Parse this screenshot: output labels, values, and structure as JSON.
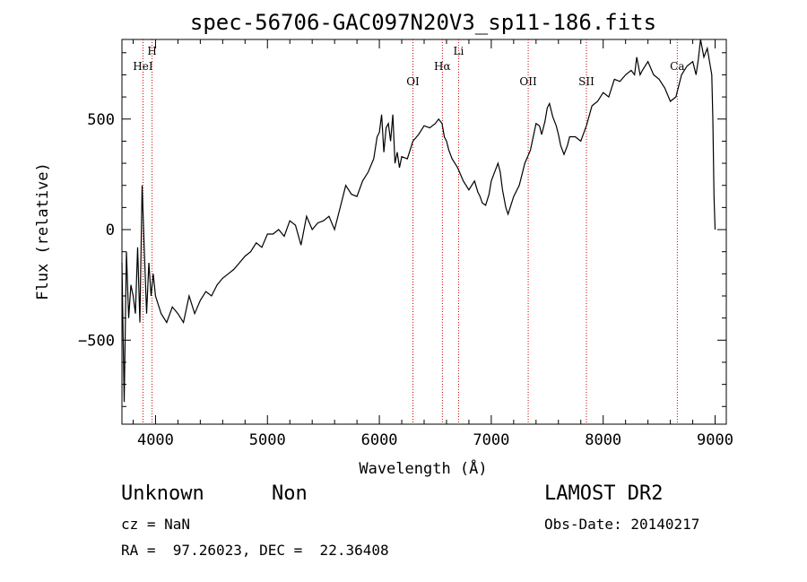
{
  "chart_data": {
    "type": "line",
    "title": "spec-56706-GAC097N20V3_sp11-186.fits",
    "xlabel": "Wavelength (Å)",
    "ylabel": "Flux (relative)",
    "xlim": [
      3700,
      9100
    ],
    "ylim": [
      -880,
      860
    ],
    "x_ticks": [
      4000,
      5000,
      6000,
      7000,
      8000,
      9000
    ],
    "y_ticks": [
      -500,
      0,
      500
    ],
    "grid": false,
    "line_color": "#000000",
    "marker_color": "#cc0000",
    "series": [
      {
        "x": [
          3700,
          3720,
          3740,
          3760,
          3780,
          3800,
          3820,
          3840,
          3860,
          3880,
          3900,
          3920,
          3940,
          3960,
          3980,
          4000,
          4050,
          4100,
          4150,
          4200,
          4250,
          4300,
          4350,
          4400,
          4450,
          4500,
          4550,
          4600,
          4650,
          4700,
          4750,
          4800,
          4850,
          4900,
          4950,
          5000,
          5050,
          5100,
          5150,
          5200,
          5250,
          5300,
          5350,
          5400,
          5450,
          5500,
          5550,
          5600,
          5650,
          5700,
          5750,
          5800,
          5850,
          5900,
          5950,
          5980,
          6000,
          6020,
          6040,
          6060,
          6080,
          6100,
          6120,
          6140,
          6160,
          6180,
          6200,
          6250,
          6300,
          6350,
          6400,
          6450,
          6500,
          6530,
          6560,
          6580,
          6600,
          6620,
          6650,
          6700,
          6750,
          6800,
          6850,
          6880,
          6900,
          6920,
          6950,
          6980,
          7000,
          7030,
          7060,
          7080,
          7100,
          7130,
          7150,
          7200,
          7250,
          7300,
          7350,
          7400,
          7430,
          7450,
          7480,
          7500,
          7520,
          7550,
          7580,
          7600,
          7620,
          7650,
          7680,
          7700,
          7750,
          7800,
          7850,
          7900,
          7950,
          8000,
          8050,
          8100,
          8150,
          8200,
          8250,
          8280,
          8300,
          8330,
          8350,
          8400,
          8450,
          8500,
          8550,
          8600,
          8650,
          8700,
          8750,
          8800,
          8830,
          8850,
          8870,
          8900,
          8930,
          8950,
          8970,
          8980,
          8990,
          9000
        ],
        "values": [
          -150,
          -780,
          -100,
          -400,
          -250,
          -300,
          -380,
          -80,
          -420,
          200,
          -100,
          -380,
          -150,
          -300,
          -200,
          -300,
          -380,
          -420,
          -350,
          -380,
          -420,
          -300,
          -380,
          -320,
          -280,
          -300,
          -250,
          -220,
          -200,
          -180,
          -150,
          -120,
          -100,
          -60,
          -80,
          -20,
          -20,
          0,
          -30,
          40,
          20,
          -70,
          60,
          0,
          30,
          40,
          60,
          0,
          100,
          200,
          160,
          150,
          220,
          260,
          320,
          420,
          440,
          520,
          350,
          460,
          480,
          400,
          520,
          300,
          350,
          280,
          330,
          320,
          400,
          430,
          470,
          460,
          480,
          500,
          480,
          420,
          400,
          360,
          320,
          280,
          220,
          180,
          220,
          170,
          150,
          120,
          110,
          160,
          220,
          260,
          300,
          260,
          180,
          100,
          70,
          150,
          200,
          300,
          360,
          480,
          470,
          430,
          490,
          550,
          570,
          510,
          470,
          430,
          380,
          340,
          380,
          420,
          420,
          400,
          470,
          560,
          580,
          620,
          600,
          680,
          670,
          700,
          720,
          700,
          780,
          700,
          720,
          760,
          700,
          680,
          640,
          580,
          600,
          700,
          740,
          760,
          700,
          770,
          860,
          780,
          820,
          760,
          700,
          500,
          150,
          0
        ]
      }
    ],
    "line_markers": [
      {
        "label": "HeI",
        "x": 3888
      },
      {
        "label": "H",
        "x": 3969
      },
      {
        "label": "OI",
        "x": 6300
      },
      {
        "label": "Hα",
        "x": 6563
      },
      {
        "label": "Li",
        "x": 6708
      },
      {
        "label": "OII",
        "x": 7330
      },
      {
        "label": "SII",
        "x": 7850
      },
      {
        "label": "Ca",
        "x": 8662
      }
    ]
  },
  "info": {
    "object_class": "Unknown",
    "subclass": "Non",
    "survey": "LAMOST DR2",
    "cz": "cz = NaN",
    "obs_date": "Obs-Date: 20140217",
    "coords": "RA =  97.26023, DEC =  22.36408"
  }
}
